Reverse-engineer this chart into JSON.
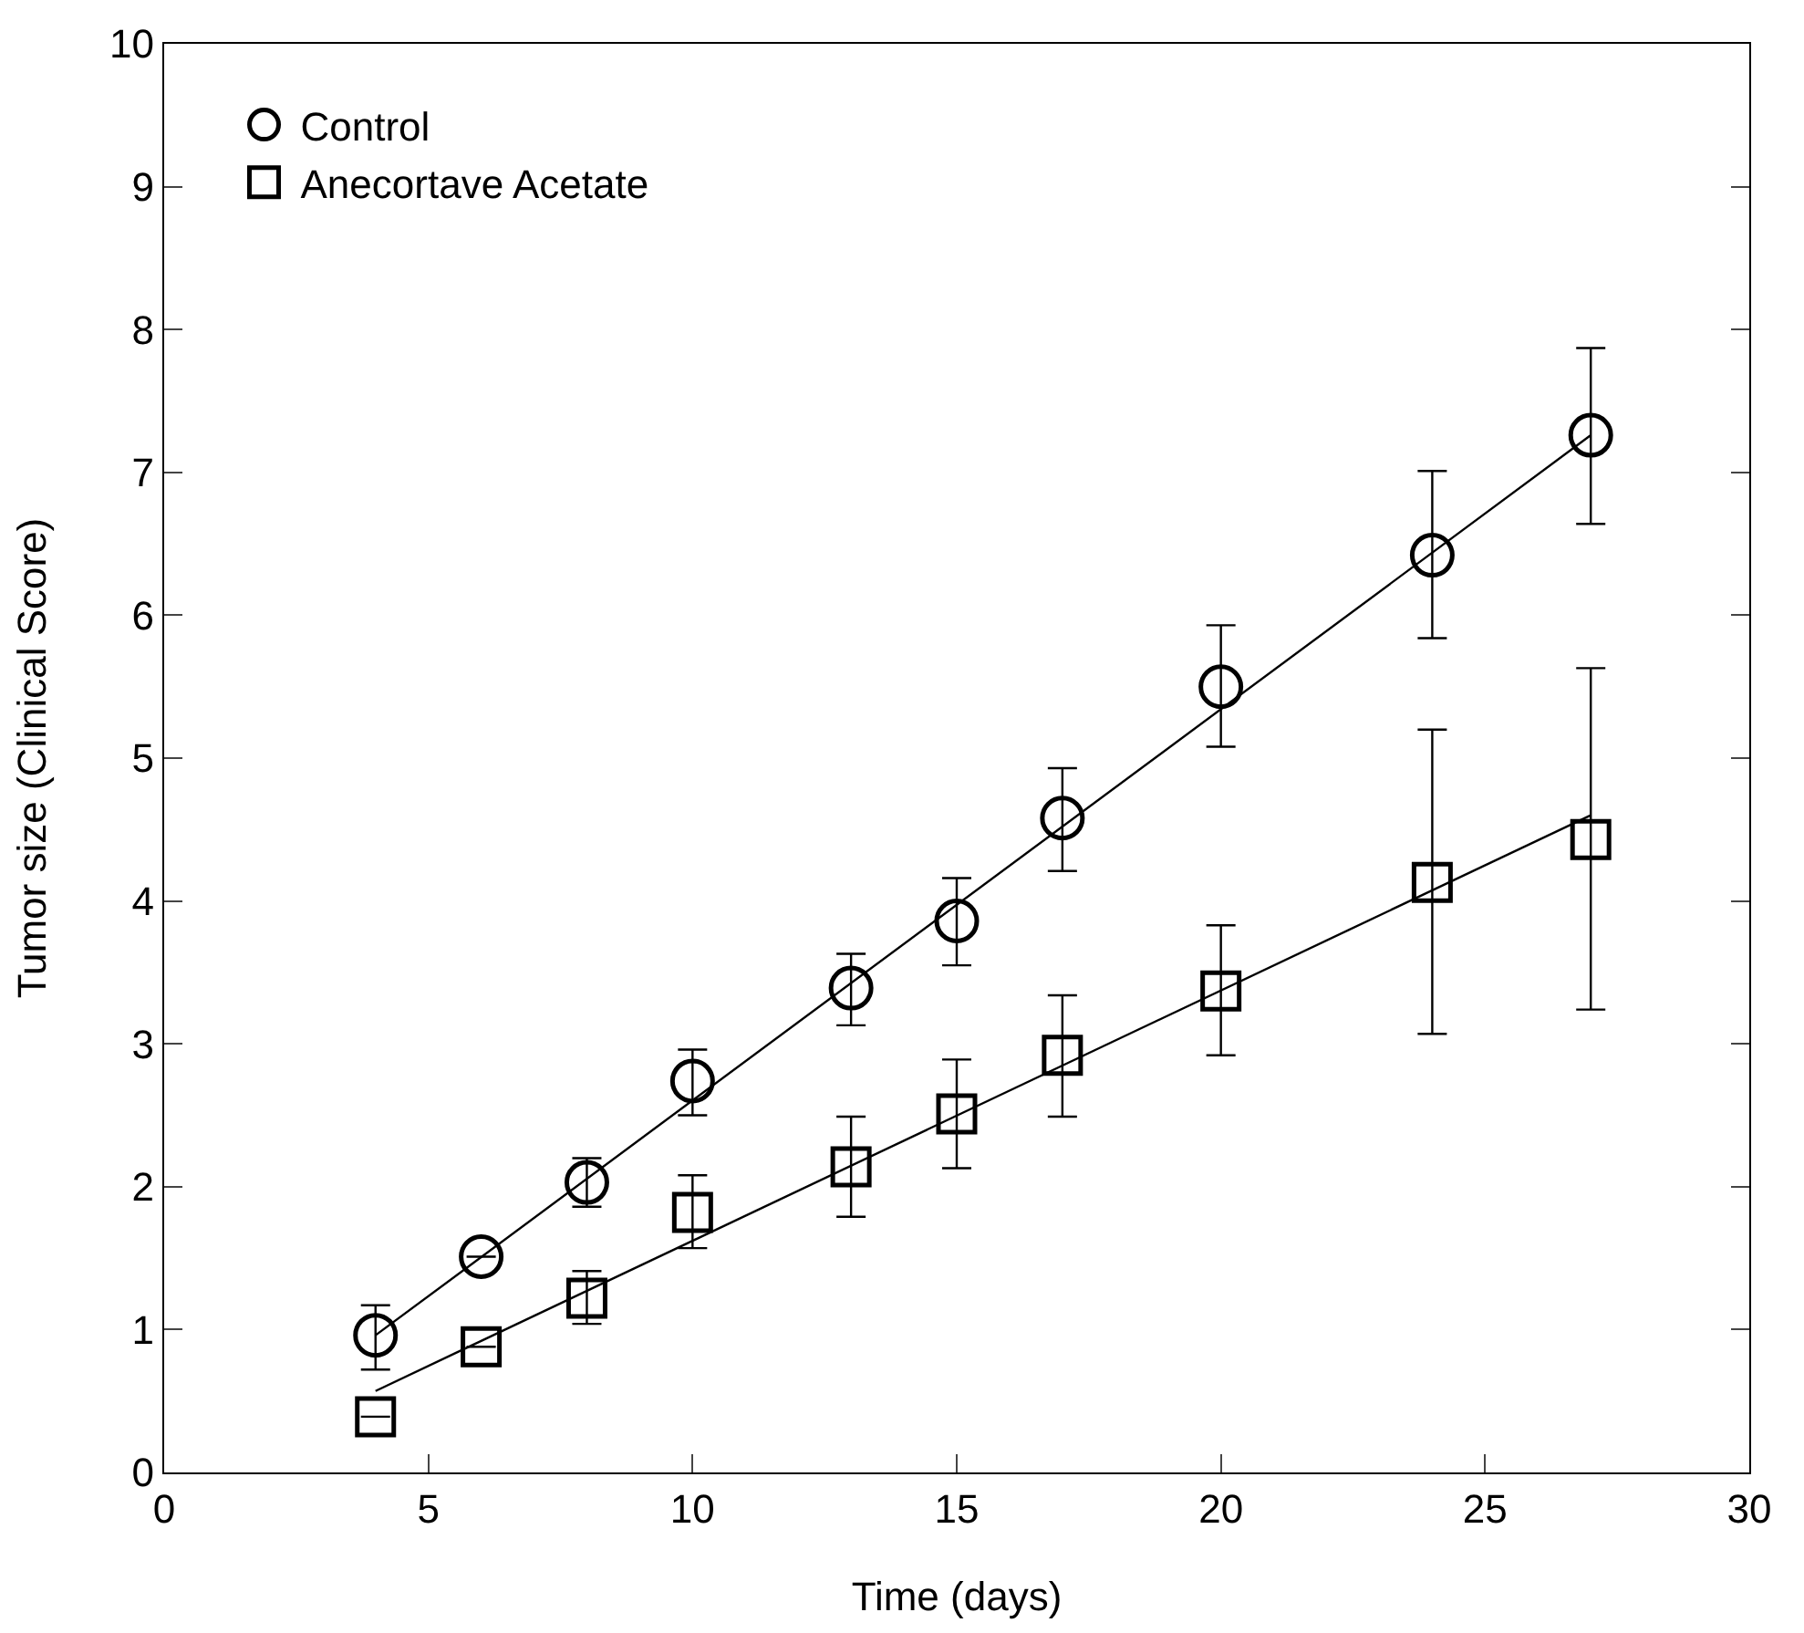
{
  "chart_data": {
    "type": "scatter",
    "xlabel": "Time (days)",
    "ylabel": "Tumor size (Clinical Score)",
    "xlim": [
      0,
      30
    ],
    "xticks": [
      0,
      5,
      10,
      15,
      20,
      25,
      30
    ],
    "ylim": [
      0,
      10
    ],
    "yticks": [
      0,
      1,
      2,
      3,
      4,
      5,
      6,
      7,
      8,
      9,
      10
    ],
    "legend": "top left",
    "series": [
      {
        "name": "Control",
        "color": "#000000",
        "marker": "circle",
        "x": [
          4,
          6,
          8,
          10,
          13,
          15,
          17,
          20,
          24,
          27
        ],
        "values": [
          0.96,
          1.51,
          2.03,
          2.74,
          3.39,
          3.86,
          4.58,
          5.5,
          6.42,
          7.26
        ],
        "errors": [
          [
            0.72,
            1.17
          ],
          null,
          [
            1.86,
            2.2
          ],
          [
            2.5,
            2.96
          ],
          [
            3.13,
            3.63
          ],
          [
            3.55,
            4.16
          ],
          [
            4.21,
            4.93
          ],
          [
            5.08,
            5.93
          ],
          [
            5.84,
            7.01
          ],
          [
            6.64,
            7.87
          ]
        ]
      },
      {
        "name": "Anecortave Acetate",
        "color": "#000000",
        "marker": "square",
        "x": [
          4,
          6,
          8,
          10,
          13,
          15,
          17,
          20,
          24,
          27
        ],
        "values": [
          0.39,
          0.88,
          1.22,
          1.82,
          2.14,
          2.51,
          2.92,
          3.37,
          4.13,
          4.43
        ],
        "errors": [
          null,
          null,
          [
            1.04,
            1.41
          ],
          [
            1.57,
            2.08
          ],
          [
            1.79,
            2.49
          ],
          [
            2.13,
            2.89
          ],
          [
            2.49,
            3.34
          ],
          [
            2.92,
            3.83
          ],
          [
            3.07,
            5.2
          ],
          [
            3.24,
            5.63
          ]
        ]
      },
      {
        "type": "line",
        "color": "#000000",
        "marker": "none",
        "x": [
          4,
          27
        ],
        "values": [
          0.96,
          7.26
        ]
      },
      {
        "type": "line",
        "color": "#000000",
        "marker": "none",
        "x": [
          4,
          27
        ],
        "values": [
          0.57,
          4.6
        ]
      }
    ]
  }
}
